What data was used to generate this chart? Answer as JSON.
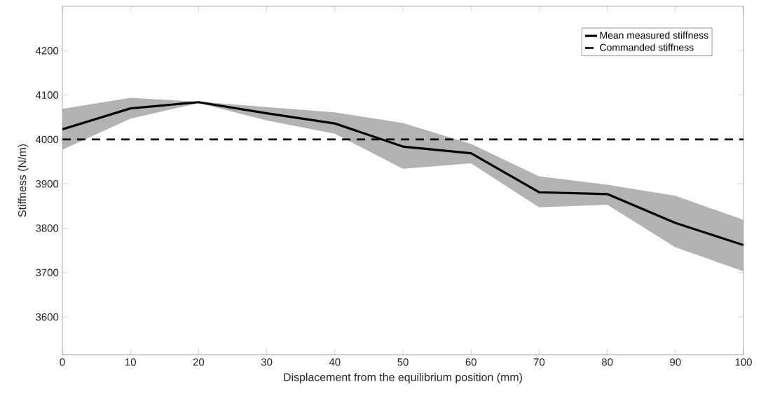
{
  "chart_data": {
    "type": "line",
    "xlabel": "Displacement from the equilibrium position (mm)",
    "ylabel": "Stiffness (N/m)",
    "x": [
      0,
      10,
      20,
      30,
      40,
      50,
      60,
      70,
      80,
      90,
      100
    ],
    "series": [
      {
        "name": "Mean measured stiffness",
        "color": "#000000",
        "values": [
          4023,
          4070,
          4084,
          4059,
          4036,
          3984,
          3969,
          3881,
          3877,
          3812,
          3762
        ],
        "upper": [
          4069,
          4094,
          4085,
          4073,
          4061,
          4037,
          3990,
          3917,
          3898,
          3873,
          3819
        ],
        "lower": [
          3977,
          4047,
          4082,
          4043,
          4013,
          3934,
          3946,
          3847,
          3853,
          3757,
          3703
        ]
      }
    ],
    "ref_lines": [
      {
        "axis": "y",
        "value": 4000,
        "label": "Commanded stiffness",
        "color": "#000000",
        "line_style": "dashed"
      }
    ],
    "xlim": [
      0,
      100
    ],
    "ylim": [
      3515,
      4300
    ],
    "xticks": [
      0,
      10,
      20,
      30,
      40,
      50,
      60,
      70,
      80,
      90,
      100
    ],
    "yticks": [
      3600,
      3700,
      3800,
      3900,
      4000,
      4100,
      4200
    ],
    "legend": "top right",
    "grid": false,
    "marker": "none",
    "line_style": "solid"
  }
}
